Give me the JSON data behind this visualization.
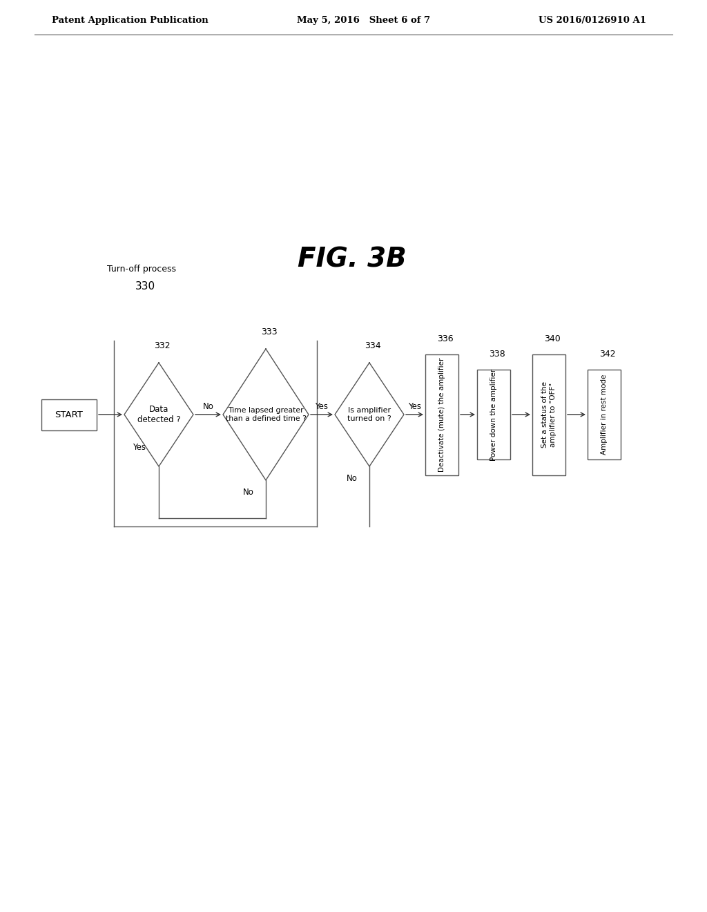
{
  "background_color": "#ffffff",
  "header_left": "Patent Application Publication",
  "header_center": "May 5, 2016   Sheet 6 of 7",
  "header_right": "US 2016/0126910 A1",
  "fig_label": "FIG. 3B",
  "process_label": "Turn-off process",
  "process_number": "330"
}
